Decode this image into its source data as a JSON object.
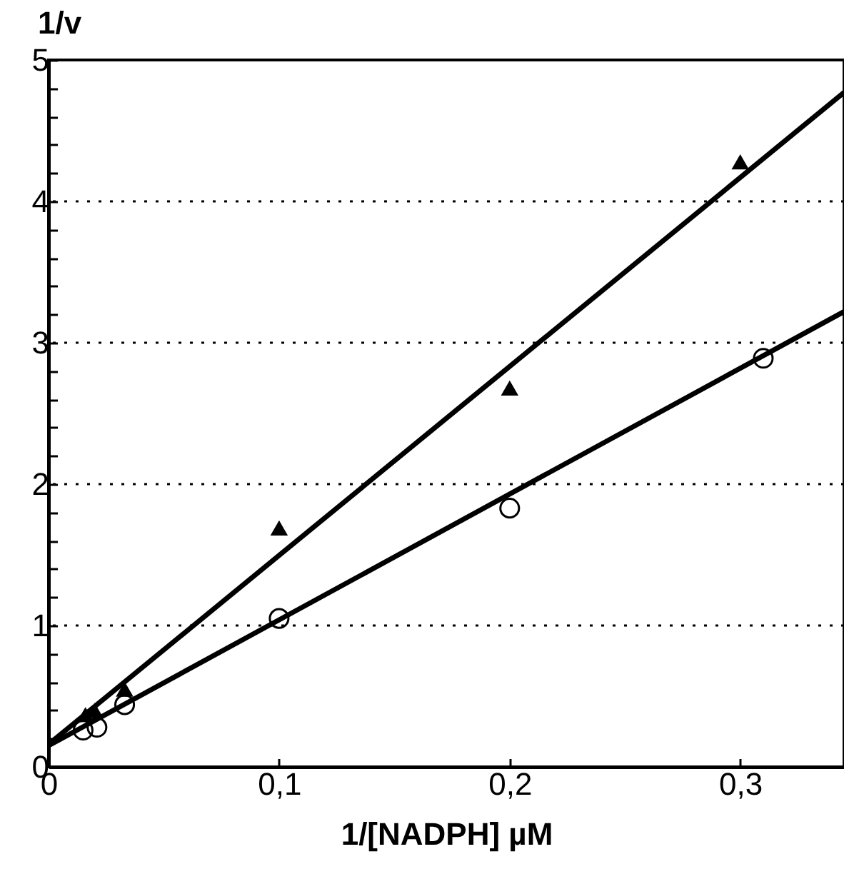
{
  "chart_data": {
    "type": "scatter",
    "xlabel": "1/[NADPH] µM",
    "ylabel": "1/v",
    "xlim": [
      0,
      0.345
    ],
    "ylim": [
      0,
      5
    ],
    "xticks": [
      0,
      {
        "value": 0.1,
        "label": "0,1"
      },
      {
        "value": 0.2,
        "label": "0,2"
      },
      {
        "value": 0.3,
        "label": "0,3"
      }
    ],
    "yticks": [
      0,
      {
        "value": 0.2,
        "label": null
      },
      {
        "value": 0.4,
        "label": null
      },
      {
        "value": 0.6,
        "label": null
      },
      {
        "value": 0.8,
        "label": null
      },
      1,
      {
        "value": 1.2,
        "label": null
      },
      {
        "value": 1.4,
        "label": null
      },
      {
        "value": 1.6,
        "label": null
      },
      {
        "value": 1.8,
        "label": null
      },
      2,
      {
        "value": 2.2,
        "label": null
      },
      {
        "value": 2.4,
        "label": null
      },
      {
        "value": 2.6,
        "label": null
      },
      {
        "value": 2.8,
        "label": null
      },
      3,
      {
        "value": 3.2,
        "label": null
      },
      {
        "value": 3.4,
        "label": null
      },
      {
        "value": 3.6,
        "label": null
      },
      {
        "value": 3.8,
        "label": null
      },
      4,
      {
        "value": 4.2,
        "label": null
      },
      {
        "value": 4.4,
        "label": null
      },
      {
        "value": 4.6,
        "label": null
      },
      {
        "value": 4.8,
        "label": null
      },
      5
    ],
    "grid": "y",
    "series": [
      {
        "type": "scatter",
        "marker": "triangle",
        "color": "#000000",
        "x": [
          0.016,
          0.02,
          0.033,
          0.1,
          0.2,
          0.3
        ],
        "values": [
          0.37,
          0.4,
          0.55,
          1.69,
          2.68,
          4.28
        ]
      },
      {
        "type": "scatter",
        "marker": "circle",
        "color": "#000000",
        "x": [
          0.015,
          0.021,
          0.033,
          0.1,
          0.2,
          0.31
        ],
        "values": [
          0.26,
          0.28,
          0.44,
          1.05,
          1.83,
          2.89
        ]
      },
      {
        "type": "line",
        "color": "#000000",
        "line_style": "solid",
        "x": [
          0,
          0.345
        ],
        "values": [
          0.16,
          4.77
        ]
      },
      {
        "type": "line",
        "color": "#000000",
        "line_style": "solid",
        "x": [
          0,
          0.345
        ],
        "values": [
          0.15,
          3.22
        ]
      }
    ]
  }
}
